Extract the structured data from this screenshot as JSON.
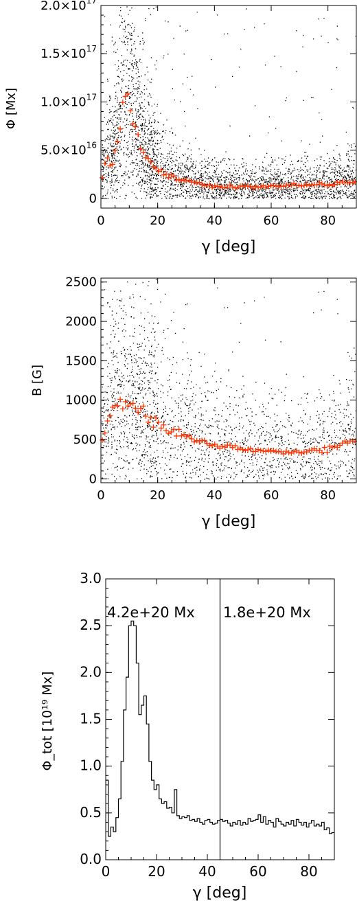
{
  "colors": {
    "scatter": "#000000",
    "median": "#ff3300",
    "axes": "#000000",
    "background": "#ffffff"
  },
  "chart_data": [
    {
      "type": "scatter",
      "xlabel": "γ [deg]",
      "ylabel": "Φ [Mx]",
      "xlim": [
        0,
        90
      ],
      "ylim": [
        -1e+16,
        2e+17
      ],
      "x_ticks": [
        0,
        20,
        40,
        60,
        80
      ],
      "x_tick_labels": [
        "0",
        "20",
        "40",
        "60",
        "80"
      ],
      "y_ticks": [
        0,
        5e+16,
        1e+17,
        1.5e+17,
        2e+17
      ],
      "y_tick_labels": [
        {
          "mantissa": "0",
          "exponent": ""
        },
        {
          "mantissa": "5.0×10",
          "exponent": "16"
        },
        {
          "mantissa": "1.0×10",
          "exponent": "17"
        },
        {
          "mantissa": "1.5×10",
          "exponent": "17"
        },
        {
          "mantissa": "2.0×10",
          "exponent": "17"
        }
      ],
      "trend": {
        "gamma": [
          0,
          2,
          4,
          6,
          8,
          10,
          12,
          14,
          16,
          20,
          25,
          30,
          35,
          40,
          45,
          50,
          55,
          60,
          65,
          70,
          75,
          80,
          85,
          90
        ],
        "value": [
          2e+16,
          4e+16,
          3.5e+16,
          6e+16,
          1.1e+17,
          1e+17,
          8e+16,
          5.5e+16,
          4e+16,
          2.8e+16,
          2.2e+16,
          1.8e+16,
          1.5e+16,
          1.3e+16,
          1.2e+16,
          1.2e+16,
          1.2e+16,
          1.3e+16,
          1.3e+16,
          1.4e+16,
          1.4e+16,
          1.5e+16,
          1.6e+16,
          1.7e+16
        ]
      }
    },
    {
      "type": "scatter",
      "xlabel": "γ [deg]",
      "ylabel": "B [G]",
      "xlim": [
        0,
        90
      ],
      "ylim": [
        -50,
        2550
      ],
      "x_ticks": [
        0,
        20,
        40,
        60,
        80
      ],
      "x_tick_labels": [
        "0",
        "20",
        "40",
        "60",
        "80"
      ],
      "y_ticks": [
        0,
        500,
        1000,
        1500,
        2000,
        2500
      ],
      "y_tick_labels": [
        "0",
        "500",
        "1000",
        "1500",
        "2000",
        "2500"
      ],
      "trend": {
        "gamma": [
          0,
          2,
          4,
          6,
          8,
          10,
          12,
          15,
          20,
          25,
          30,
          35,
          40,
          45,
          50,
          55,
          60,
          65,
          70,
          75,
          80,
          85,
          90
        ],
        "value": [
          450,
          700,
          850,
          950,
          980,
          930,
          880,
          800,
          700,
          610,
          530,
          470,
          420,
          400,
          380,
          360,
          350,
          345,
          340,
          350,
          380,
          440,
          500
        ]
      }
    },
    {
      "type": "line",
      "style": "step",
      "xlabel": "γ [deg]",
      "ylabel": "Φ_tot [10¹⁹ Mx]",
      "xlim": [
        0,
        90
      ],
      "ylim": [
        0,
        3.0
      ],
      "x_ticks": [
        0,
        20,
        40,
        60,
        80
      ],
      "x_tick_labels": [
        "0",
        "20",
        "40",
        "60",
        "80"
      ],
      "y_ticks": [
        0.0,
        0.5,
        1.0,
        1.5,
        2.0,
        2.5,
        3.0
      ],
      "y_tick_labels": [
        "0.0",
        "0.5",
        "1.0",
        "1.5",
        "2.0",
        "2.5",
        "3.0"
      ],
      "divider_at": 45,
      "annotations": [
        "4.2e+20 Mx",
        "1.8e+20 Mx"
      ],
      "bin_width": 1,
      "values": [
        0.85,
        0.25,
        0.35,
        0.3,
        0.45,
        0.65,
        1.05,
        1.6,
        1.95,
        2.5,
        2.55,
        2.5,
        2.1,
        1.55,
        1.65,
        1.75,
        1.45,
        1.05,
        0.85,
        0.75,
        0.8,
        0.65,
        0.6,
        0.62,
        0.55,
        0.56,
        0.5,
        0.75,
        0.47,
        0.44,
        0.46,
        0.45,
        0.47,
        0.42,
        0.43,
        0.41,
        0.44,
        0.4,
        0.38,
        0.42,
        0.43,
        0.4,
        0.38,
        0.39,
        0.42,
        0.43,
        0.41,
        0.42,
        0.39,
        0.36,
        0.4,
        0.38,
        0.42,
        0.37,
        0.4,
        0.38,
        0.44,
        0.41,
        0.42,
        0.43,
        0.48,
        0.4,
        0.46,
        0.38,
        0.42,
        0.4,
        0.35,
        0.44,
        0.41,
        0.38,
        0.36,
        0.4,
        0.38,
        0.42,
        0.36,
        0.43,
        0.4,
        0.37,
        0.4,
        0.35,
        0.39,
        0.42,
        0.36,
        0.38,
        0.36,
        0.4,
        0.32,
        0.34,
        0.28,
        0.29
      ]
    }
  ]
}
